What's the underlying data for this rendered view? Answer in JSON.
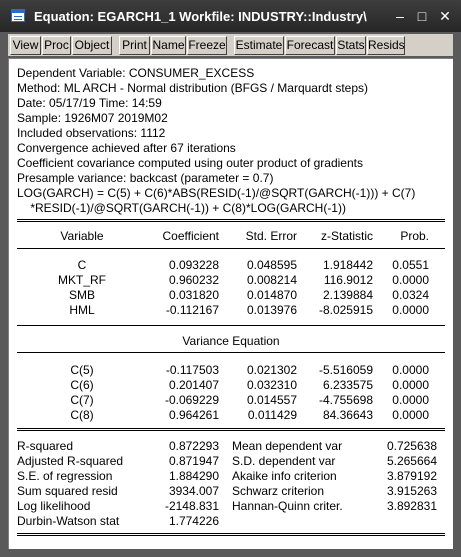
{
  "window": {
    "title": "Equation: EGARCH1_1   Workfile: INDUSTRY::Industry\\",
    "minimize_glyph": "–",
    "maximize_glyph": "□",
    "close_glyph": "✕"
  },
  "toolbar": {
    "buttons": [
      "View",
      "Proc",
      "Object",
      "Print",
      "Name",
      "Freeze",
      "Estimate",
      "Forecast",
      "Stats",
      "Resids"
    ]
  },
  "header": {
    "lines": [
      "Dependent Variable: CONSUMER_EXCESS",
      "Method: ML ARCH - Normal distribution (BFGS / Marquardt steps)",
      "Date: 05/17/19   Time: 14:59",
      "Sample: 1926M07 2019M02",
      "Included observations: 1112",
      "Convergence achieved after 67 iterations",
      "Coefficient covariance computed using outer product of gradients",
      "Presample variance: backcast (parameter = 0.7)",
      "LOG(GARCH) = C(5) + C(6)*ABS(RESID(-1)/@SQRT(GARCH(-1))) + C(7)",
      "    *RESID(-1)/@SQRT(GARCH(-1)) + C(8)*LOG(GARCH(-1))"
    ]
  },
  "table": {
    "columns": [
      "Variable",
      "Coefficient",
      "Std. Error",
      "z-Statistic",
      "Prob."
    ],
    "mean_rows": [
      [
        "C",
        "0.093228",
        "0.048595",
        "1.918442",
        "0.0551"
      ],
      [
        "MKT_RF",
        "0.960232",
        "0.008214",
        "116.9012",
        "0.0000"
      ],
      [
        "SMB",
        "0.031820",
        "0.014870",
        "2.139884",
        "0.0324"
      ],
      [
        "HML",
        "-0.112167",
        "0.013976",
        "-8.025915",
        "0.0000"
      ]
    ],
    "variance_title": "Variance Equation",
    "variance_rows": [
      [
        "C(5)",
        "-0.117503",
        "0.021302",
        "-5.516059",
        "0.0000"
      ],
      [
        "C(6)",
        "0.201407",
        "0.032310",
        "6.233575",
        "0.0000"
      ],
      [
        "C(7)",
        "-0.069229",
        "0.014557",
        "-4.755698",
        "0.0000"
      ],
      [
        "C(8)",
        "0.964261",
        "0.011429",
        "84.36643",
        "0.0000"
      ]
    ]
  },
  "stats": {
    "left": [
      [
        "R-squared",
        "0.872293"
      ],
      [
        "Adjusted R-squared",
        "0.871947"
      ],
      [
        "S.E. of regression",
        "1.884290"
      ],
      [
        "Sum squared resid",
        "3934.007"
      ],
      [
        "Log likelihood",
        "-2148.831"
      ],
      [
        "Durbin-Watson stat",
        "1.774226"
      ]
    ],
    "right": [
      [
        "Mean dependent var",
        "0.725638"
      ],
      [
        "S.D. dependent var",
        "5.265664"
      ],
      [
        "Akaike info criterion",
        "3.879192"
      ],
      [
        "Schwarz criterion",
        "3.915263"
      ],
      [
        "Hannan-Quinn criter.",
        "3.892831"
      ]
    ]
  },
  "colors": {
    "titlebar": "#2e2e2e",
    "frame": "#5a5a5a",
    "toolbar": "#d4d0c8",
    "content": "#ffffff",
    "icon_accent": "#2a6bd0"
  }
}
